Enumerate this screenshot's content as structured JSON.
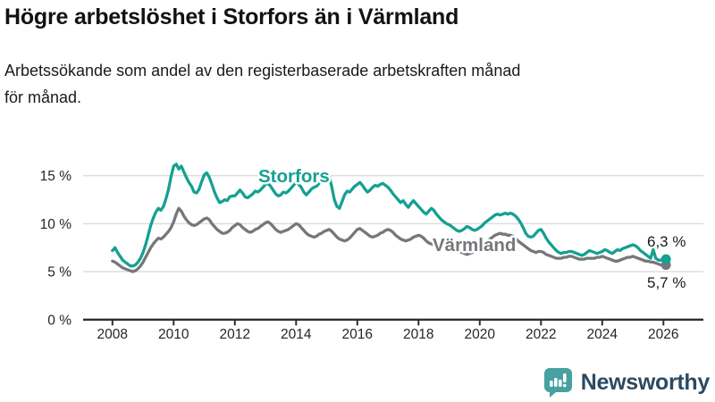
{
  "header": {
    "title": "Högre arbetslöshet i Storfors än i Värmland",
    "subtitle_lines": [
      "Arbetssökande som andel av den registerbaserade arbetskraften månad",
      "för månad."
    ]
  },
  "chart_data": {
    "type": "line",
    "title": "Högre arbetslöshet i Storfors än i Värmland",
    "subtitle": "Arbetssökande som andel av den registerbaserade arbetskraften månad för månad.",
    "x_unit": "month",
    "x_start": "2008-01",
    "x_end": "2026-02",
    "points_per_year": 12,
    "x_ticks": [
      "2008",
      "2010",
      "2012",
      "2014",
      "2016",
      "2018",
      "2020",
      "2022",
      "2024",
      "2026"
    ],
    "y_ticks": [
      {
        "value": 0,
        "label": "0 %"
      },
      {
        "value": 5,
        "label": "5 %"
      },
      {
        "value": 10,
        "label": "10 %"
      },
      {
        "value": 15,
        "label": "15 %"
      }
    ],
    "y_gridlines": [
      5,
      10,
      15
    ],
    "ylim": [
      0,
      17
    ],
    "grid": "horizontal",
    "legend_position": "inline-labels",
    "colors": {
      "storfors": "#13A191",
      "varmland": "#76777B",
      "gridline": "#DBDBDB",
      "axis": "#2E2E2E",
      "annotation": "#1A1A1A"
    },
    "series": [
      {
        "name": "Värmland",
        "color": "#76777B",
        "end_label": "5,7 %",
        "end_value": 5.7,
        "values": [
          6.1,
          6.0,
          5.8,
          5.6,
          5.4,
          5.3,
          5.2,
          5.1,
          5.0,
          5.1,
          5.3,
          5.6,
          6.0,
          6.5,
          7.0,
          7.5,
          7.9,
          8.2,
          8.5,
          8.4,
          8.6,
          8.9,
          9.2,
          9.6,
          10.2,
          11.0,
          11.6,
          11.3,
          10.8,
          10.4,
          10.1,
          9.9,
          9.8,
          9.9,
          10.1,
          10.3,
          10.5,
          10.6,
          10.4,
          10.0,
          9.7,
          9.4,
          9.2,
          9.0,
          9.0,
          9.1,
          9.3,
          9.6,
          9.8,
          10.0,
          9.9,
          9.6,
          9.4,
          9.2,
          9.1,
          9.2,
          9.4,
          9.5,
          9.7,
          9.9,
          10.1,
          10.2,
          10.0,
          9.7,
          9.4,
          9.2,
          9.1,
          9.2,
          9.3,
          9.4,
          9.6,
          9.8,
          10.0,
          9.9,
          9.6,
          9.3,
          9.0,
          8.8,
          8.7,
          8.6,
          8.7,
          8.9,
          9.0,
          9.2,
          9.3,
          9.4,
          9.2,
          8.9,
          8.6,
          8.4,
          8.3,
          8.2,
          8.3,
          8.5,
          8.8,
          9.1,
          9.4,
          9.5,
          9.3,
          9.1,
          8.9,
          8.7,
          8.6,
          8.7,
          8.8,
          9.0,
          9.1,
          9.3,
          9.4,
          9.3,
          9.1,
          8.8,
          8.6,
          8.4,
          8.3,
          8.2,
          8.3,
          8.4,
          8.6,
          8.7,
          8.8,
          8.7,
          8.5,
          8.2,
          8.0,
          7.9,
          7.8,
          7.7,
          7.8,
          7.8,
          7.9,
          7.9,
          8.0,
          7.8,
          7.6,
          7.3,
          7.1,
          7.0,
          6.9,
          6.8,
          6.9,
          7.0,
          7.1,
          7.2,
          7.3,
          7.5,
          7.8,
          8.1,
          8.4,
          8.6,
          8.8,
          8.9,
          9.0,
          8.9,
          8.9,
          8.8,
          8.8,
          8.7,
          8.5,
          8.2,
          8.0,
          7.8,
          7.6,
          7.4,
          7.2,
          7.1,
          7.0,
          7.1,
          7.1,
          7.0,
          6.8,
          6.7,
          6.6,
          6.5,
          6.4,
          6.4,
          6.4,
          6.5,
          6.5,
          6.6,
          6.6,
          6.5,
          6.4,
          6.3,
          6.3,
          6.3,
          6.4,
          6.4,
          6.4,
          6.4,
          6.5,
          6.5,
          6.6,
          6.5,
          6.4,
          6.3,
          6.2,
          6.1,
          6.1,
          6.2,
          6.3,
          6.4,
          6.5,
          6.5,
          6.6,
          6.5,
          6.4,
          6.3,
          6.2,
          6.1,
          6.1,
          6.0,
          6.0,
          5.9,
          5.8,
          5.7,
          5.7,
          5.7
        ]
      },
      {
        "name": "Storfors",
        "color": "#13A191",
        "end_label": "6,3 %",
        "end_value": 6.3,
        "values": [
          7.2,
          7.5,
          7.0,
          6.6,
          6.2,
          6.0,
          5.8,
          5.6,
          5.6,
          5.7,
          6.0,
          6.4,
          7.0,
          7.8,
          8.8,
          9.8,
          10.6,
          11.2,
          11.6,
          11.4,
          11.8,
          12.6,
          13.6,
          14.9,
          16.0,
          16.2,
          15.7,
          16.0,
          15.4,
          14.8,
          14.3,
          13.9,
          13.3,
          13.2,
          13.6,
          14.4,
          15.1,
          15.3,
          14.8,
          14.1,
          13.3,
          12.7,
          12.2,
          12.3,
          12.5,
          12.4,
          12.8,
          12.9,
          12.9,
          13.2,
          13.5,
          13.2,
          12.8,
          12.7,
          12.9,
          13.1,
          13.4,
          13.3,
          13.5,
          13.8,
          14.1,
          14.2,
          13.9,
          13.5,
          13.1,
          12.9,
          13.0,
          13.3,
          13.2,
          13.4,
          13.7,
          14.0,
          14.3,
          14.1,
          13.8,
          13.3,
          13.0,
          13.3,
          13.6,
          13.8,
          13.9,
          14.2,
          14.6,
          14.9,
          15.1,
          14.9,
          13.8,
          12.5,
          11.8,
          11.6,
          12.3,
          13.0,
          13.4,
          13.3,
          13.6,
          13.9,
          14.1,
          14.3,
          14.0,
          13.6,
          13.3,
          13.5,
          13.8,
          14.0,
          13.9,
          14.1,
          14.2,
          14.0,
          13.8,
          13.5,
          13.1,
          12.8,
          12.5,
          12.2,
          12.4,
          12.0,
          11.7,
          12.1,
          12.4,
          12.1,
          11.8,
          11.5,
          11.2,
          11.0,
          11.3,
          11.6,
          11.4,
          11.0,
          10.7,
          10.4,
          10.2,
          10.0,
          9.9,
          9.7,
          9.5,
          9.3,
          9.2,
          9.3,
          9.5,
          9.7,
          9.6,
          9.4,
          9.3,
          9.4,
          9.6,
          9.8,
          10.1,
          10.3,
          10.5,
          10.7,
          10.9,
          11.0,
          10.9,
          11.0,
          11.1,
          11.0,
          11.1,
          11.0,
          10.8,
          10.5,
          10.1,
          9.6,
          9.0,
          8.7,
          8.6,
          8.7,
          9.0,
          9.3,
          9.4,
          9.0,
          8.5,
          8.1,
          7.8,
          7.5,
          7.2,
          7.0,
          6.9,
          7.0,
          7.0,
          7.1,
          7.1,
          7.0,
          6.9,
          6.8,
          6.7,
          6.8,
          7.0,
          7.2,
          7.1,
          7.0,
          6.9,
          7.0,
          7.1,
          7.3,
          7.2,
          7.0,
          6.9,
          7.1,
          7.3,
          7.2,
          7.4,
          7.5,
          7.6,
          7.7,
          7.8,
          7.7,
          7.5,
          7.2,
          7.0,
          6.8,
          6.6,
          6.4,
          7.3,
          6.4,
          6.2,
          6.2,
          6.2,
          6.3
        ]
      }
    ]
  },
  "footer": {
    "brand": "Newsworthy",
    "logo_icon": "bar-chart-speech-bubble-icon",
    "logo_color": "#48A1A1",
    "brand_text_color": "#2A4A63"
  }
}
